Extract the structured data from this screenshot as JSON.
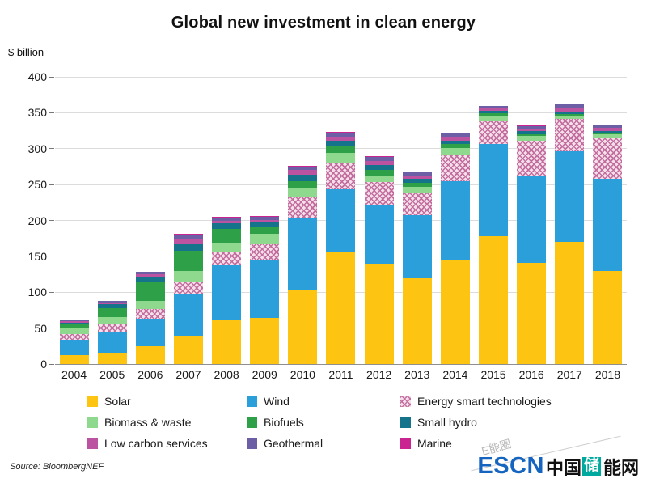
{
  "source": "Source: BloombergNEF",
  "watermark": "E能圈",
  "logo": {
    "escn": "ESCN",
    "cn_prefix": "中国",
    "cn_boxed": "储",
    "cn_suffix": "能网"
  },
  "chart_data": {
    "type": "bar",
    "stacked": true,
    "title": "Global new investment in clean energy",
    "ylabel": "$ billion",
    "xlabel": "",
    "ylim": [
      0,
      400
    ],
    "ytick_step": 50,
    "grid": true,
    "legend_position": "bottom",
    "categories": [
      "2004",
      "2005",
      "2006",
      "2007",
      "2008",
      "2009",
      "2010",
      "2011",
      "2012",
      "2013",
      "2014",
      "2015",
      "2016",
      "2017",
      "2018"
    ],
    "series": [
      {
        "name": "Solar",
        "color": "#FDC412",
        "values": [
          12,
          16,
          25,
          40,
          62,
          64,
          103,
          157,
          140,
          120,
          145,
          178,
          141,
          170,
          130
        ]
      },
      {
        "name": "Wind",
        "color": "#2B9FD9",
        "values": [
          22,
          29,
          38,
          57,
          75,
          80,
          100,
          86,
          82,
          87,
          110,
          128,
          120,
          126,
          128
        ]
      },
      {
        "name": "Energy smart technologies",
        "color": "#F4DFEA",
        "pattern": "crosshatch",
        "pattern_color": "#C26D9E",
        "values": [
          8,
          10,
          14,
          18,
          18,
          24,
          29,
          38,
          32,
          31,
          37,
          33,
          50,
          45,
          56
        ]
      },
      {
        "name": "Biomass & waste",
        "color": "#8FD98F",
        "values": [
          8,
          10,
          11,
          15,
          14,
          13,
          14,
          13,
          9,
          9,
          9,
          7,
          7,
          5,
          6
        ]
      },
      {
        "name": "Biofuels",
        "color": "#2EA148",
        "values": [
          5,
          13,
          26,
          28,
          19,
          9,
          9,
          9,
          7,
          5,
          5,
          3,
          2,
          2,
          2
        ]
      },
      {
        "name": "Small hydro",
        "color": "#16738C",
        "values": [
          3,
          5,
          7,
          9,
          8,
          7,
          9,
          8,
          7,
          6,
          5,
          4,
          4,
          3.5,
          2.5
        ]
      },
      {
        "name": "Low carbon services",
        "color": "#BC53A0",
        "values": [
          2,
          2.5,
          4,
          8,
          4,
          4,
          6,
          6,
          6,
          5,
          6,
          4,
          4.5,
          6,
          5
        ]
      },
      {
        "name": "Geothermal",
        "color": "#6D5FA6",
        "values": [
          1.5,
          2,
          3,
          5.5,
          4,
          4,
          5,
          5,
          5,
          4,
          4,
          2.5,
          3,
          4,
          3
        ]
      },
      {
        "name": "Marine",
        "color": "#C9248F",
        "values": [
          0.5,
          0.5,
          1,
          1.5,
          1,
          1,
          1,
          2,
          2,
          1,
          1,
          0.5,
          0.5,
          0.5,
          0.5
        ]
      }
    ],
    "legend": [
      "Solar",
      "Wind",
      "Energy smart technologies",
      "Biomass & waste",
      "Biofuels",
      "Small hydro",
      "Low carbon services",
      "Geothermal",
      "Marine"
    ]
  }
}
